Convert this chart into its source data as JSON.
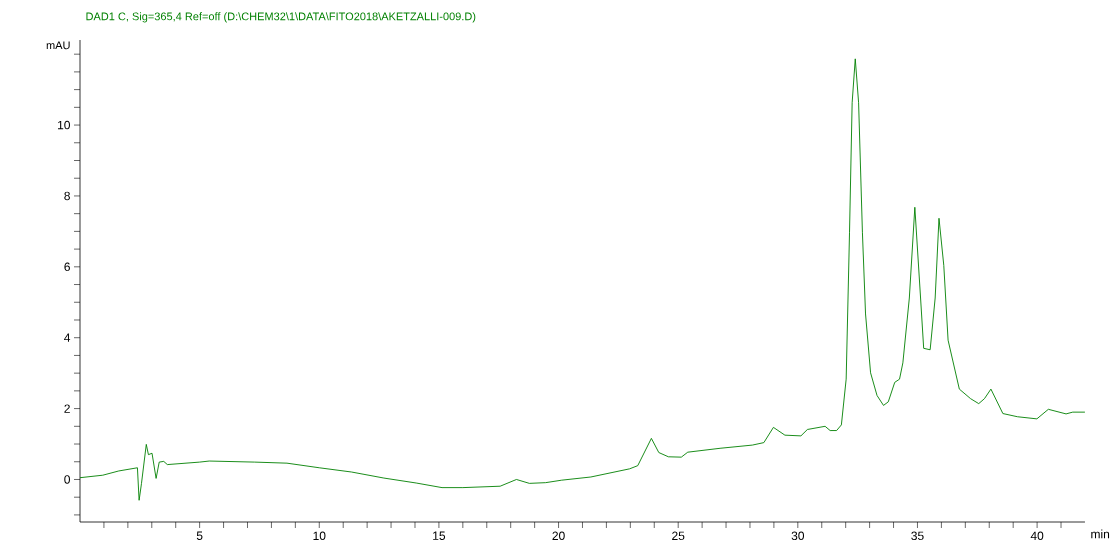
{
  "chart_data": {
    "type": "line",
    "title": "DAD1 C, Sig=365,4 Ref=off (D:\\CHEM32\\1\\DATA\\FITO2018\\AKETZALLI-009.D)",
    "xlabel": "min",
    "ylabel": "mAU",
    "color": "#008000",
    "xlim": [
      0,
      42
    ],
    "ylim": [
      -1.2,
      12.4
    ],
    "xticks": [
      {
        "value": 1,
        "label": null
      },
      {
        "value": 2,
        "label": null
      },
      {
        "value": 3,
        "label": null
      },
      {
        "value": 4,
        "label": null
      },
      5,
      {
        "value": 6,
        "label": null
      },
      {
        "value": 7,
        "label": null
      },
      {
        "value": 8,
        "label": null
      },
      {
        "value": 9,
        "label": null
      },
      10,
      {
        "value": 11,
        "label": null
      },
      {
        "value": 12,
        "label": null
      },
      {
        "value": 13,
        "label": null
      },
      {
        "value": 14,
        "label": null
      },
      15,
      {
        "value": 16,
        "label": null
      },
      {
        "value": 17,
        "label": null
      },
      {
        "value": 18,
        "label": null
      },
      {
        "value": 19,
        "label": null
      },
      20,
      {
        "value": 21,
        "label": null
      },
      {
        "value": 22,
        "label": null
      },
      {
        "value": 23,
        "label": null
      },
      {
        "value": 24,
        "label": null
      },
      25,
      {
        "value": 26,
        "label": null
      },
      {
        "value": 27,
        "label": null
      },
      {
        "value": 28,
        "label": null
      },
      {
        "value": 29,
        "label": null
      },
      30,
      {
        "value": 31,
        "label": null
      },
      {
        "value": 32,
        "label": null
      },
      {
        "value": 33,
        "label": null
      },
      {
        "value": 34,
        "label": null
      },
      35,
      {
        "value": 36,
        "label": null
      },
      {
        "value": 37,
        "label": null
      },
      {
        "value": 38,
        "label": null
      },
      {
        "value": 39,
        "label": null
      },
      40,
      {
        "value": 41,
        "label": null
      }
    ],
    "yticks": [
      {
        "value": -1,
        "label": null
      },
      {
        "value": -0.5,
        "label": null
      },
      0,
      {
        "value": 0.5,
        "label": null
      },
      {
        "value": 1,
        "label": null
      },
      {
        "value": 1.5,
        "label": null
      },
      2,
      {
        "value": 2.5,
        "label": null
      },
      {
        "value": 3,
        "label": null
      },
      {
        "value": 3.5,
        "label": null
      },
      4,
      {
        "value": 4.5,
        "label": null
      },
      {
        "value": 5,
        "label": null
      },
      {
        "value": 5.5,
        "label": null
      },
      6,
      {
        "value": 6.5,
        "label": null
      },
      {
        "value": 7,
        "label": null
      },
      {
        "value": 7.5,
        "label": null
      },
      8,
      {
        "value": 8.5,
        "label": null
      },
      {
        "value": 9,
        "label": null
      },
      {
        "value": 9.5,
        "label": null
      },
      10,
      {
        "value": 10.5,
        "label": null
      },
      {
        "value": 11,
        "label": null
      },
      {
        "value": 11.5,
        "label": null
      },
      {
        "value": 12,
        "label": null
      }
    ],
    "x": [
      0,
      0.95,
      1.62,
      2.4,
      2.47,
      2.57,
      2.77,
      2.86,
      3.01,
      3.18,
      3.31,
      3.5,
      3.65,
      5.0,
      5.4,
      7.3,
      8.65,
      10.0,
      11.35,
      12.7,
      14.05,
      15.13,
      16.0,
      17.56,
      18.24,
      18.78,
      19.46,
      20.13,
      21.35,
      22.97,
      23.31,
      23.88,
      24.19,
      24.59,
      25.13,
      25.4,
      26.75,
      28.1,
      28.58,
      28.98,
      29.46,
      30.13,
      30.4,
      31.14,
      31.35,
      31.62,
      31.82,
      32.02,
      32.16,
      32.27,
      32.4,
      32.54,
      32.7,
      32.83,
      33.04,
      33.31,
      33.58,
      33.78,
      34.05,
      34.25,
      34.39,
      34.66,
      34.89,
      35.13,
      35.26,
      35.53,
      35.74,
      35.9,
      36.1,
      36.28,
      36.75,
      37.22,
      37.56,
      37.8,
      38.07,
      38.57,
      39.18,
      39.99,
      40.47,
      41.21,
      41.49,
      42.0
    ],
    "values": [
      0.05,
      0.12,
      0.24,
      0.33,
      -0.59,
      -0.11,
      0.99,
      0.7,
      0.74,
      0.03,
      0.49,
      0.51,
      0.42,
      0.49,
      0.52,
      0.49,
      0.46,
      0.33,
      0.21,
      0.04,
      -0.1,
      -0.23,
      -0.23,
      -0.19,
      0.0,
      -0.11,
      -0.09,
      -0.02,
      0.07,
      0.3,
      0.39,
      1.16,
      0.76,
      0.64,
      0.63,
      0.77,
      0.88,
      0.97,
      1.04,
      1.47,
      1.25,
      1.23,
      1.41,
      1.5,
      1.38,
      1.38,
      1.54,
      2.83,
      6.96,
      10.63,
      11.87,
      10.63,
      6.96,
      4.67,
      3.01,
      2.37,
      2.09,
      2.19,
      2.74,
      2.83,
      3.29,
      5.12,
      7.68,
      5.12,
      3.7,
      3.66,
      5.12,
      7.37,
      6.04,
      3.93,
      2.55,
      2.28,
      2.14,
      2.28,
      2.55,
      1.86,
      1.77,
      1.71,
      1.98,
      1.85,
      1.9,
      1.9
    ]
  }
}
